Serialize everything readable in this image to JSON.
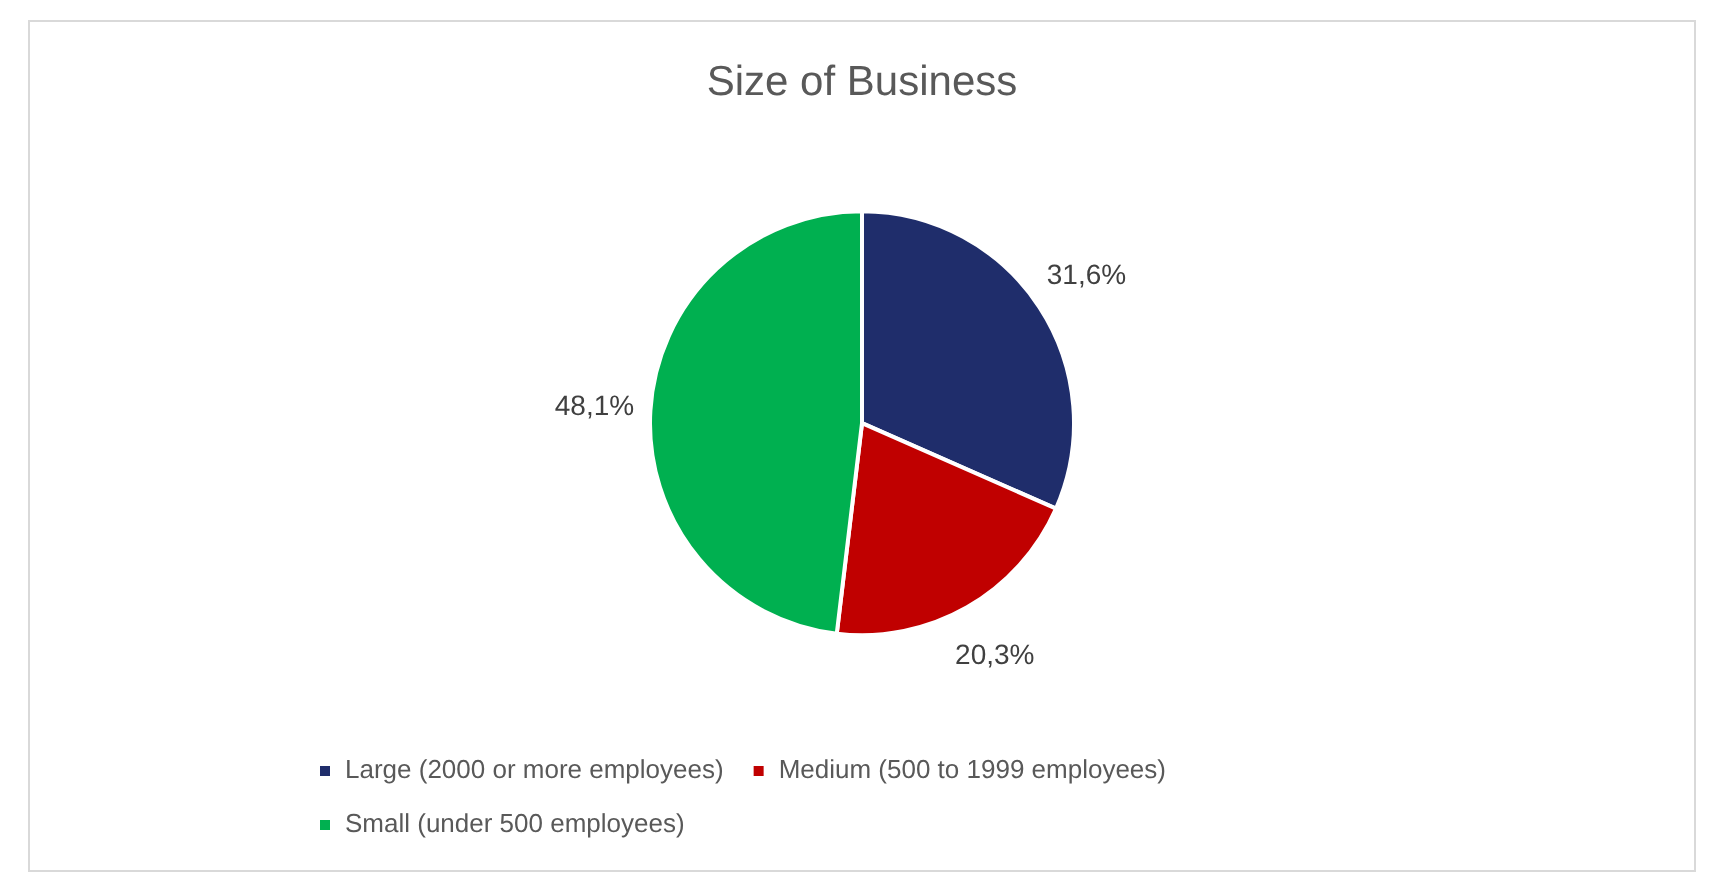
{
  "chart_data": {
    "type": "pie",
    "title": "Size of Business",
    "categories": [
      "Large (2000 or more employees)",
      "Medium (500 to 1999 employees)",
      "Small (under 500 employees)"
    ],
    "values": [
      31.6,
      20.3,
      48.1
    ],
    "value_labels": [
      "31,6%",
      "20,3%",
      "48,1%"
    ],
    "colors": [
      "#1f2d6b",
      "#c00000",
      "#00b050"
    ],
    "legend": "bottom"
  }
}
